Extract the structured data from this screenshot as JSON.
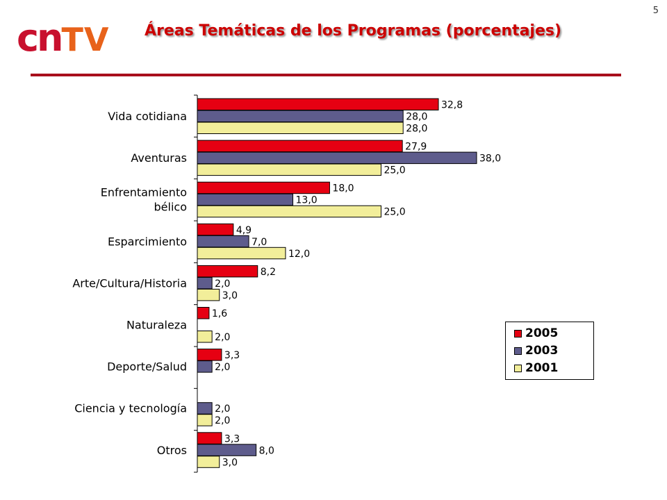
{
  "page_number": "5",
  "logo": {
    "part1": "cn",
    "part2": "TV"
  },
  "title": "Áreas Temáticas de los Programas (porcentajes)",
  "colors": {
    "s2005": "#e60012",
    "s2003": "#5e5c8c",
    "s2001": "#f2ee9a",
    "title": "#cc0000",
    "rule": "#a80f1c"
  },
  "chart_data": {
    "type": "bar",
    "orientation": "horizontal",
    "categories": [
      "Vida cotidiana",
      "Aventuras",
      "Enfrentamiento bélico",
      "Esparcimiento",
      "Arte/Cultura/Historia",
      "Naturaleza",
      "Deporte/Salud",
      "Ciencia y tecnología",
      "Otros"
    ],
    "category_lines": [
      [
        "Vida cotidiana"
      ],
      [
        "Aventuras"
      ],
      [
        "Enfrentamiento",
        "bélico"
      ],
      [
        "Esparcimiento"
      ],
      [
        "Arte/Cultura/Historia"
      ],
      [
        "Naturaleza"
      ],
      [
        "Deporte/Salud"
      ],
      [
        "Ciencia y tecnología"
      ],
      [
        "Otros"
      ]
    ],
    "series": [
      {
        "name": "2005",
        "values": [
          32.8,
          27.9,
          18.0,
          4.9,
          8.2,
          1.6,
          3.3,
          null,
          3.3
        ],
        "labels": [
          "32,8",
          "27,9",
          "18,0",
          "4,9",
          "8,2",
          "1,6",
          "3,3",
          "",
          "3,3"
        ]
      },
      {
        "name": "2003",
        "values": [
          28.0,
          38.0,
          13.0,
          7.0,
          2.0,
          null,
          2.0,
          2.0,
          8.0
        ],
        "labels": [
          "28,0",
          "38,0",
          "13,0",
          "7,0",
          "2,0",
          "",
          "2,0",
          "2,0",
          "8,0"
        ]
      },
      {
        "name": "2001",
        "values": [
          28.0,
          25.0,
          25.0,
          12.0,
          3.0,
          2.0,
          null,
          2.0,
          3.0
        ],
        "labels": [
          "28,0",
          "25,0",
          "25,0",
          "12,0",
          "3,0",
          "2,0",
          "",
          "2,0",
          "3,0"
        ]
      }
    ],
    "xlim": [
      0,
      40
    ],
    "grid": false,
    "legend_position": "right"
  }
}
